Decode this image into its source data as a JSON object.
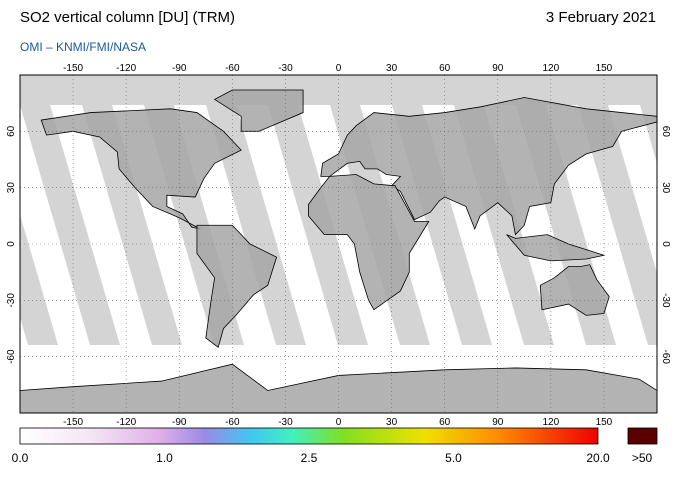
{
  "title": "SO2 vertical column [DU] (TRM)",
  "date": "3 February 2021",
  "subtitle": "OMI  –  KNMI/FMI/NASA",
  "lonlim": [
    -180,
    180
  ],
  "latlim": [
    -90,
    90
  ],
  "lon_ticks": [
    -150,
    -120,
    -90,
    -60,
    -30,
    0,
    30,
    60,
    90,
    120,
    150
  ],
  "lat_ticks": [
    60,
    30,
    0,
    -30,
    -60
  ],
  "colorbar": {
    "labels": [
      "0.0",
      "1.0",
      "2.5",
      "5.0",
      "20.0"
    ],
    "overflow_label": ">50"
  }
}
